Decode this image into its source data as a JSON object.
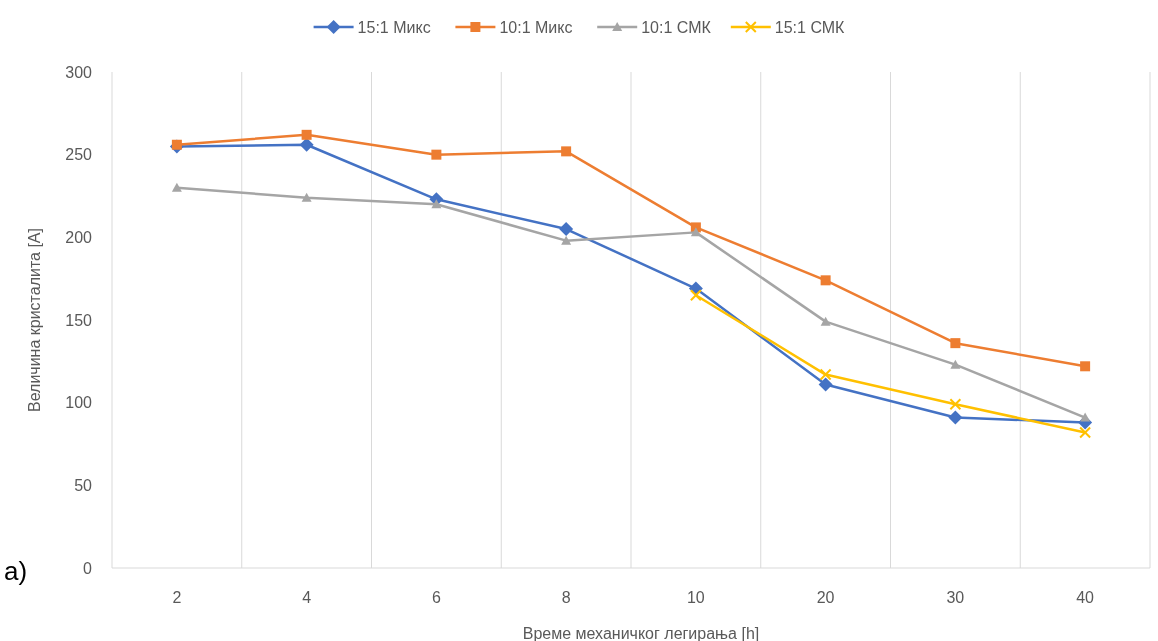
{
  "chart_data": {
    "type": "line",
    "xlabel": "Време механичког легирања [h]",
    "ylabel": "Величина кристалита [A]",
    "categories": [
      "2",
      "4",
      "6",
      "8",
      "10",
      "20",
      "30",
      "40"
    ],
    "ylim": [
      0,
      300
    ],
    "yticks": [
      0,
      50,
      100,
      150,
      200,
      250,
      300
    ],
    "grid": "x",
    "legend": "top",
    "annotations": [
      "a)"
    ],
    "series": [
      {
        "name": "15:1 Микс",
        "color": "#4472c4",
        "marker": "diamond",
        "values": [
          255,
          256,
          223,
          205,
          169,
          111,
          91,
          88
        ]
      },
      {
        "name": "10:1 Микс",
        "color": "#ed7d31",
        "marker": "square",
        "values": [
          256,
          262,
          250,
          252,
          206,
          174,
          136,
          122
        ]
      },
      {
        "name": "10:1 СМК",
        "color": "#a5a5a5",
        "marker": "triangle",
        "values": [
          230,
          224,
          220,
          198,
          203,
          149,
          123,
          91
        ]
      },
      {
        "name": "15:1 СМК",
        "color": "#ffc000",
        "marker": "cross",
        "values": [
          null,
          null,
          null,
          null,
          165,
          117,
          99,
          82
        ]
      }
    ]
  }
}
